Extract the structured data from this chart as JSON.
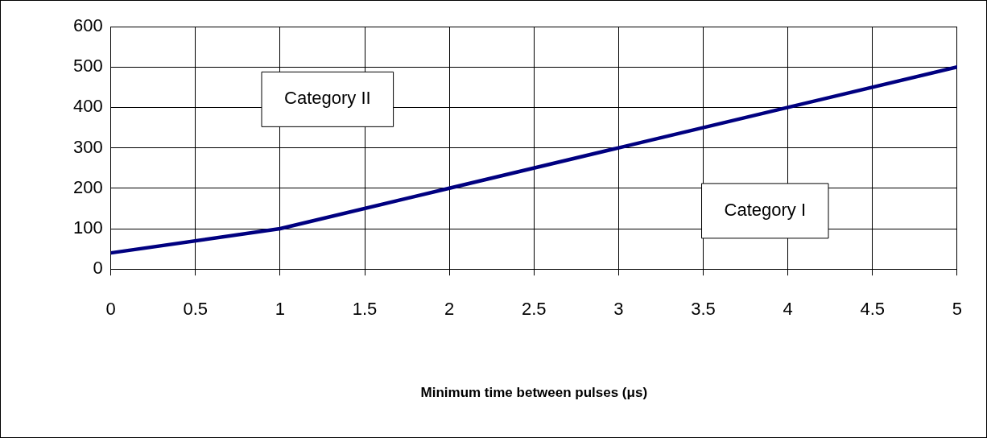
{
  "chart_data": {
    "type": "line",
    "xlabel": "Minimum time between pulses (μs)",
    "x": [
      0,
      1,
      2,
      3,
      4,
      5
    ],
    "series": [
      {
        "color": "#000080",
        "values": [
          40,
          100,
          200,
          300,
          400,
          500
        ]
      }
    ],
    "xlim": [
      0,
      5
    ],
    "xticks": [
      0,
      0.5,
      1,
      1.5,
      2,
      2.5,
      3,
      3.5,
      4,
      4.5,
      5
    ],
    "ylim": [
      0,
      600
    ],
    "yticks": [
      0,
      100,
      200,
      300,
      400,
      500,
      600
    ],
    "grid": true,
    "legend": false,
    "marker": "none",
    "line_style": "solid",
    "annotations": [
      "Category II",
      "Category I"
    ]
  }
}
